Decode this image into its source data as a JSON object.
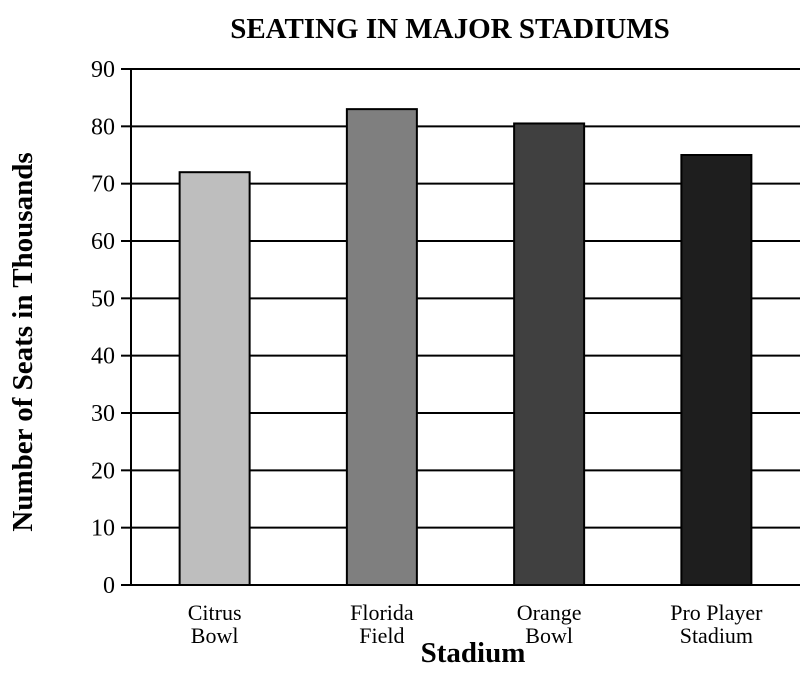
{
  "chart_data": {
    "type": "bar",
    "title": "SEATING IN MAJOR STADIUMS",
    "xlabel": "Stadium",
    "ylabel": "Number of Seats in Thousands",
    "ylim": [
      0,
      90
    ],
    "yticks": [
      0,
      10,
      20,
      30,
      40,
      50,
      60,
      70,
      80,
      90
    ],
    "grid": true,
    "categories": [
      {
        "line1": "Citrus",
        "line2": "Bowl"
      },
      {
        "line1": "Florida",
        "line2": "Field"
      },
      {
        "line1": "Orange",
        "line2": "Bowl"
      },
      {
        "line1": "Pro Player",
        "line2": "Stadium"
      }
    ],
    "values": [
      72,
      83,
      80.5,
      75
    ],
    "colors": [
      "#bebebe",
      "#7f7f7f",
      "#404040",
      "#1e1e1e"
    ]
  }
}
